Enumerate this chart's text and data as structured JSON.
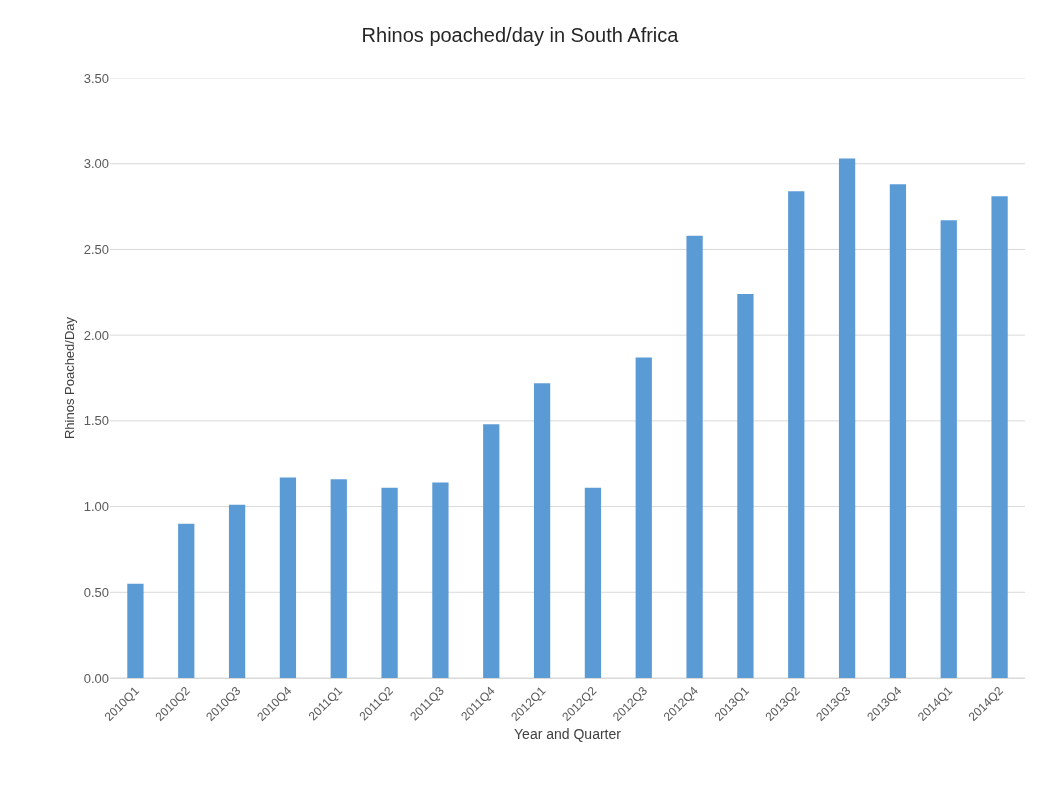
{
  "chart_data": {
    "type": "bar",
    "title": "Rhinos poached/day in South Africa",
    "xlabel": "Year and Quarter",
    "ylabel": "Rhinos Poached/Day",
    "categories": [
      "2010Q1",
      "2010Q2",
      "2010Q3",
      "2010Q4",
      "2011Q1",
      "2011Q2",
      "2011Q3",
      "2011Q4",
      "2012Q1",
      "2012Q2",
      "2012Q3",
      "2012Q4",
      "2013Q1",
      "2013Q2",
      "2013Q3",
      "2013Q4",
      "2014Q1",
      "2014Q2"
    ],
    "values": [
      0.55,
      0.9,
      1.01,
      1.17,
      1.16,
      1.11,
      1.14,
      1.48,
      1.72,
      1.11,
      1.87,
      2.58,
      2.24,
      2.84,
      3.03,
      2.88,
      2.67,
      2.81
    ],
    "color": "#5b9bd5",
    "ylim": [
      0,
      3.5
    ],
    "yticks": [
      {
        "value": 0,
        "label": "0.00"
      },
      {
        "value": 0.5,
        "label": "0.50"
      },
      {
        "value": 1,
        "label": "1.00"
      },
      {
        "value": 1.5,
        "label": "1.50"
      },
      {
        "value": 2,
        "label": "2.00"
      },
      {
        "value": 2.5,
        "label": "2.50"
      },
      {
        "value": 3,
        "label": "3.00"
      },
      {
        "value": 3.5,
        "label": "3.50"
      }
    ],
    "grid": "y"
  }
}
